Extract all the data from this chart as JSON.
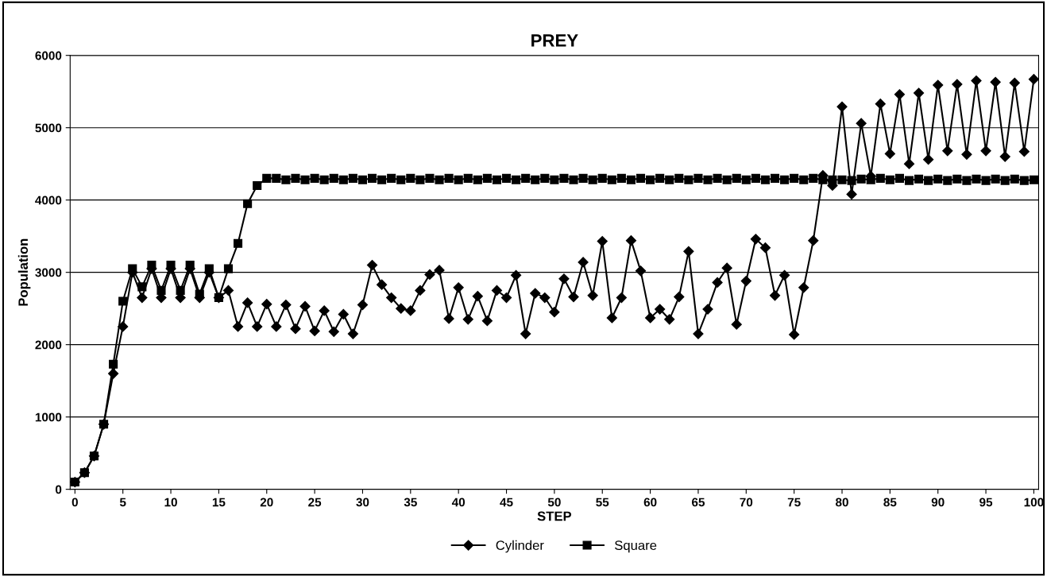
{
  "chart_data": {
    "type": "line",
    "title": "PREY",
    "xlabel": "STEP",
    "ylabel": "Population",
    "x": [
      0,
      1,
      2,
      3,
      4,
      5,
      6,
      7,
      8,
      9,
      10,
      11,
      12,
      13,
      14,
      15,
      16,
      17,
      18,
      19,
      20,
      21,
      22,
      23,
      24,
      25,
      26,
      27,
      28,
      29,
      30,
      31,
      32,
      33,
      34,
      35,
      36,
      37,
      38,
      39,
      40,
      41,
      42,
      43,
      44,
      45,
      46,
      47,
      48,
      49,
      50,
      51,
      52,
      53,
      54,
      55,
      56,
      57,
      58,
      59,
      60,
      61,
      62,
      63,
      64,
      65,
      66,
      67,
      68,
      69,
      70,
      71,
      72,
      73,
      74,
      75,
      76,
      77,
      78,
      79,
      80,
      81,
      82,
      83,
      84,
      85,
      86,
      87,
      88,
      89,
      90,
      91,
      92,
      93,
      94,
      95,
      96,
      97,
      98,
      99,
      100
    ],
    "series": [
      {
        "name": "Cylinder",
        "color": "#000000",
        "marker": "diamond",
        "values": [
          100,
          230,
          460,
          900,
          1600,
          2250,
          3000,
          2650,
          3050,
          2650,
          3050,
          2650,
          3050,
          2650,
          3000,
          2650,
          2750,
          2250,
          2580,
          2250,
          2560,
          2250,
          2550,
          2220,
          2530,
          2190,
          2470,
          2180,
          2420,
          2150,
          2550,
          3100,
          2830,
          2650,
          2500,
          2470,
          2750,
          2970,
          3030,
          2360,
          2790,
          2350,
          2670,
          2330,
          2750,
          2650,
          2960,
          2150,
          2710,
          2650,
          2450,
          2910,
          2660,
          3140,
          2680,
          3430,
          2370,
          2650,
          3440,
          3020,
          2370,
          2490,
          2350,
          2660,
          3290,
          2150,
          2490,
          2860,
          3060,
          2280,
          2880,
          3460,
          3340,
          2680,
          2960,
          2140,
          2790,
          3440,
          4340,
          4200,
          5290,
          4080,
          5060,
          4330,
          5330,
          4640,
          5460,
          4500,
          5480,
          4560,
          5590,
          4680,
          5600,
          4630,
          5650,
          4680,
          5630,
          4600,
          5620,
          4670,
          5670
        ]
      },
      {
        "name": "Square",
        "color": "#000000",
        "marker": "square",
        "values": [
          100,
          230,
          460,
          900,
          1730,
          2600,
          3050,
          2800,
          3100,
          2750,
          3100,
          2750,
          3100,
          2700,
          3050,
          2650,
          3050,
          3400,
          3950,
          4200,
          4300,
          4300,
          4280,
          4300,
          4280,
          4300,
          4280,
          4300,
          4280,
          4300,
          4280,
          4300,
          4280,
          4300,
          4280,
          4300,
          4280,
          4300,
          4280,
          4300,
          4280,
          4300,
          4280,
          4300,
          4280,
          4300,
          4280,
          4300,
          4280,
          4300,
          4280,
          4300,
          4280,
          4300,
          4280,
          4300,
          4280,
          4300,
          4280,
          4300,
          4280,
          4300,
          4280,
          4300,
          4280,
          4300,
          4280,
          4300,
          4280,
          4300,
          4280,
          4300,
          4280,
          4300,
          4280,
          4300,
          4280,
          4300,
          4280,
          4280,
          4280,
          4270,
          4290,
          4280,
          4300,
          4280,
          4300,
          4270,
          4290,
          4270,
          4290,
          4270,
          4290,
          4270,
          4290,
          4270,
          4290,
          4270,
          4290,
          4270,
          4280
        ]
      }
    ],
    "xlim": [
      -0.5,
      100.5
    ],
    "xticks": [
      0,
      5,
      10,
      15,
      20,
      25,
      30,
      35,
      40,
      45,
      50,
      55,
      60,
      65,
      70,
      75,
      80,
      85,
      90,
      95,
      100
    ],
    "ylim": [
      0,
      6000
    ],
    "yticks": [
      0,
      1000,
      2000,
      3000,
      4000,
      5000,
      6000
    ],
    "grid": "y",
    "legend": "bottom",
    "line_style": "solid"
  }
}
